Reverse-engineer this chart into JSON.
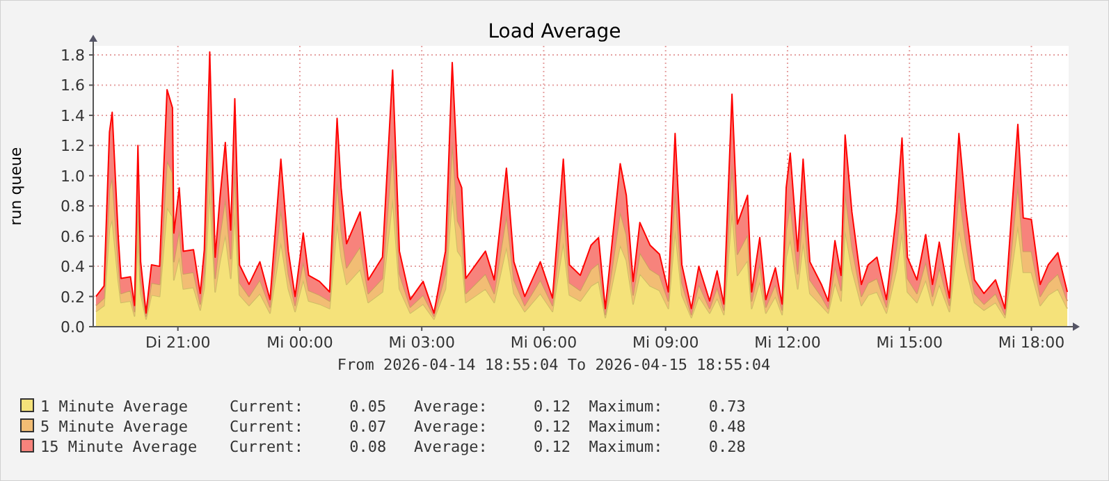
{
  "chart_data": {
    "type": "area",
    "stacked": true,
    "title": "Load Average",
    "subtitle": "From 2026-04-14 18:55:04 To 2026-04-15 18:55:04",
    "ylabel": "run queue",
    "x": [
      "2026-04-14T18:59",
      "2026-04-14T19:11",
      "2026-04-14T19:19",
      "2026-04-14T19:23",
      "2026-04-14T19:32",
      "2026-04-14T19:36",
      "2026-04-14T19:50",
      "2026-04-14T19:56",
      "2026-04-14T20:01",
      "2026-04-14T20:05",
      "2026-04-14T20:13",
      "2026-04-14T20:21",
      "2026-04-14T20:33",
      "2026-04-14T20:44",
      "2026-04-14T20:52",
      "2026-04-14T20:54",
      "2026-04-14T21:02",
      "2026-04-14T21:08",
      "2026-04-14T21:23",
      "2026-04-14T21:33",
      "2026-04-14T21:39",
      "2026-04-14T21:47",
      "2026-04-14T21:55",
      "2026-04-14T22:02",
      "2026-04-14T22:10",
      "2026-04-14T22:18",
      "2026-04-14T22:24",
      "2026-04-14T22:31",
      "2026-04-14T22:45",
      "2026-04-14T23:01",
      "2026-04-14T23:16",
      "2026-04-14T23:32",
      "2026-04-14T23:43",
      "2026-04-14T23:53",
      "2026-04-15T00:05",
      "2026-04-15T00:13",
      "2026-04-15T00:29",
      "2026-04-15T00:44",
      "2026-04-15T00:55",
      "2026-04-15T01:01",
      "2026-04-15T01:09",
      "2026-04-15T01:29",
      "2026-04-15T01:41",
      "2026-04-15T02:02",
      "2026-04-15T02:17",
      "2026-04-15T02:27",
      "2026-04-15T02:43",
      "2026-04-15T03:02",
      "2026-04-15T03:18",
      "2026-04-15T03:35",
      "2026-04-15T03:45",
      "2026-04-15T03:53",
      "2026-04-15T03:59",
      "2026-04-15T04:05",
      "2026-04-15T04:34",
      "2026-04-15T04:47",
      "2026-04-15T05:05",
      "2026-04-15T05:16",
      "2026-04-15T05:32",
      "2026-04-15T05:55",
      "2026-04-15T06:13",
      "2026-04-15T06:29",
      "2026-04-15T06:38",
      "2026-04-15T06:54",
      "2026-04-15T07:10",
      "2026-04-15T07:21",
      "2026-04-15T07:31",
      "2026-04-15T07:53",
      "2026-04-15T08:02",
      "2026-04-15T08:12",
      "2026-04-15T08:22",
      "2026-04-15T08:37",
      "2026-04-15T08:51",
      "2026-04-15T09:04",
      "2026-04-15T09:14",
      "2026-04-15T09:24",
      "2026-04-15T09:38",
      "2026-04-15T09:49",
      "2026-04-15T10:05",
      "2026-04-15T10:16",
      "2026-04-15T10:26",
      "2026-04-15T10:38",
      "2026-04-15T10:46",
      "2026-04-15T11:01",
      "2026-04-15T11:07",
      "2026-04-15T11:19",
      "2026-04-15T11:28",
      "2026-04-15T11:42",
      "2026-04-15T11:52",
      "2026-04-15T11:58",
      "2026-04-15T12:04",
      "2026-04-15T12:15",
      "2026-04-15T12:23",
      "2026-04-15T12:33",
      "2026-04-15T12:50",
      "2026-04-15T13:00",
      "2026-04-15T13:10",
      "2026-04-15T13:19",
      "2026-04-15T13:25",
      "2026-04-15T13:35",
      "2026-04-15T13:49",
      "2026-04-15T13:59",
      "2026-04-15T14:12",
      "2026-04-15T14:26",
      "2026-04-15T14:41",
      "2026-04-15T14:49",
      "2026-04-15T14:57",
      "2026-04-15T15:11",
      "2026-04-15T15:24",
      "2026-04-15T15:34",
      "2026-04-15T15:44",
      "2026-04-15T15:59",
      "2026-04-15T16:13",
      "2026-04-15T16:23",
      "2026-04-15T16:36",
      "2026-04-15T16:50",
      "2026-04-15T17:07",
      "2026-04-15T17:21",
      "2026-04-15T17:40",
      "2026-04-15T17:48",
      "2026-04-15T18:00",
      "2026-04-15T18:13",
      "2026-04-15T18:25",
      "2026-04-15T18:39",
      "2026-04-15T18:53"
    ],
    "series": [
      {
        "name": "1 Minute Average",
        "color": "#f5e27a",
        "values": [
          0.1,
          0.14,
          0.65,
          0.71,
          0.3,
          0.16,
          0.17,
          0.07,
          0.6,
          0.22,
          0.05,
          0.21,
          0.2,
          0.79,
          0.73,
          0.31,
          0.46,
          0.25,
          0.26,
          0.11,
          0.26,
          0.91,
          0.23,
          0.43,
          0.61,
          0.32,
          0.76,
          0.21,
          0.14,
          0.22,
          0.09,
          0.56,
          0.25,
          0.1,
          0.31,
          0.17,
          0.15,
          0.12,
          0.69,
          0.46,
          0.28,
          0.38,
          0.16,
          0.23,
          0.85,
          0.25,
          0.09,
          0.15,
          0.05,
          0.25,
          0.88,
          0.5,
          0.46,
          0.16,
          0.25,
          0.16,
          0.53,
          0.22,
          0.1,
          0.22,
          0.1,
          0.56,
          0.21,
          0.17,
          0.27,
          0.3,
          0.06,
          0.54,
          0.44,
          0.15,
          0.35,
          0.27,
          0.24,
          0.12,
          0.64,
          0.21,
          0.06,
          0.2,
          0.09,
          0.19,
          0.08,
          0.77,
          0.34,
          0.44,
          0.12,
          0.3,
          0.09,
          0.2,
          0.08,
          0.46,
          0.58,
          0.25,
          0.56,
          0.22,
          0.14,
          0.09,
          0.29,
          0.17,
          0.64,
          0.38,
          0.14,
          0.21,
          0.23,
          0.09,
          0.38,
          0.63,
          0.23,
          0.16,
          0.31,
          0.14,
          0.28,
          0.1,
          0.64,
          0.4,
          0.16,
          0.11,
          0.16,
          0.06,
          0.67,
          0.36,
          0.36,
          0.14,
          0.21,
          0.25,
          0.12
        ]
      },
      {
        "name": "5 Minute Average",
        "color": "#f2bd74",
        "values": [
          0.04,
          0.05,
          0.26,
          0.28,
          0.12,
          0.06,
          0.07,
          0.03,
          0.24,
          0.09,
          0.02,
          0.08,
          0.08,
          0.31,
          0.29,
          0.12,
          0.18,
          0.1,
          0.1,
          0.04,
          0.1,
          0.36,
          0.09,
          0.17,
          0.24,
          0.13,
          0.3,
          0.08,
          0.06,
          0.09,
          0.04,
          0.22,
          0.1,
          0.04,
          0.12,
          0.07,
          0.06,
          0.05,
          0.28,
          0.18,
          0.11,
          0.15,
          0.06,
          0.09,
          0.34,
          0.1,
          0.04,
          0.06,
          0.02,
          0.1,
          0.35,
          0.2,
          0.18,
          0.06,
          0.1,
          0.06,
          0.21,
          0.09,
          0.04,
          0.09,
          0.04,
          0.22,
          0.08,
          0.07,
          0.11,
          0.12,
          0.02,
          0.22,
          0.17,
          0.06,
          0.14,
          0.11,
          0.1,
          0.05,
          0.26,
          0.08,
          0.02,
          0.08,
          0.03,
          0.07,
          0.03,
          0.31,
          0.14,
          0.17,
          0.05,
          0.12,
          0.04,
          0.08,
          0.03,
          0.18,
          0.23,
          0.1,
          0.22,
          0.09,
          0.06,
          0.03,
          0.11,
          0.07,
          0.25,
          0.15,
          0.06,
          0.08,
          0.09,
          0.04,
          0.15,
          0.25,
          0.09,
          0.06,
          0.12,
          0.06,
          0.11,
          0.04,
          0.26,
          0.16,
          0.06,
          0.04,
          0.06,
          0.02,
          0.27,
          0.14,
          0.14,
          0.06,
          0.08,
          0.1,
          0.05
        ]
      },
      {
        "name": "15 Minute Average",
        "color": "#f7837c",
        "values": [
          0.06,
          0.08,
          0.38,
          0.43,
          0.17,
          0.1,
          0.09,
          0.04,
          0.36,
          0.12,
          0.02,
          0.12,
          0.12,
          0.47,
          0.43,
          0.19,
          0.28,
          0.15,
          0.15,
          0.07,
          0.15,
          0.55,
          0.14,
          0.25,
          0.37,
          0.19,
          0.45,
          0.12,
          0.08,
          0.12,
          0.05,
          0.33,
          0.15,
          0.06,
          0.19,
          0.1,
          0.09,
          0.06,
          0.41,
          0.28,
          0.16,
          0.23,
          0.09,
          0.14,
          0.51,
          0.15,
          0.05,
          0.09,
          0.02,
          0.15,
          0.52,
          0.29,
          0.28,
          0.1,
          0.15,
          0.09,
          0.31,
          0.12,
          0.06,
          0.12,
          0.05,
          0.33,
          0.12,
          0.1,
          0.16,
          0.17,
          0.04,
          0.32,
          0.26,
          0.09,
          0.2,
          0.16,
          0.14,
          0.06,
          0.38,
          0.12,
          0.04,
          0.12,
          0.05,
          0.11,
          0.04,
          0.46,
          0.2,
          0.26,
          0.06,
          0.17,
          0.05,
          0.11,
          0.04,
          0.28,
          0.34,
          0.15,
          0.33,
          0.12,
          0.08,
          0.05,
          0.17,
          0.1,
          0.38,
          0.23,
          0.08,
          0.12,
          0.14,
          0.05,
          0.23,
          0.37,
          0.14,
          0.09,
          0.18,
          0.08,
          0.17,
          0.05,
          0.38,
          0.23,
          0.09,
          0.07,
          0.09,
          0.04,
          0.4,
          0.22,
          0.21,
          0.08,
          0.12,
          0.14,
          0.06
        ]
      }
    ],
    "xlim": [
      "2026-04-14T18:55",
      "2026-04-15T18:55"
    ],
    "xticks": [
      {
        "value": "2026-04-14T21:00",
        "label": "Di 21:00"
      },
      {
        "value": "2026-04-15T00:00",
        "label": "Mi 00:00"
      },
      {
        "value": "2026-04-15T03:00",
        "label": "Mi 03:00"
      },
      {
        "value": "2026-04-15T06:00",
        "label": "Mi 06:00"
      },
      {
        "value": "2026-04-15T09:00",
        "label": "Mi 09:00"
      },
      {
        "value": "2026-04-15T12:00",
        "label": "Mi 12:00"
      },
      {
        "value": "2026-04-15T15:00",
        "label": "Mi 15:00"
      },
      {
        "value": "2026-04-15T18:00",
        "label": "Mi 18:00"
      }
    ],
    "ylim": [
      0,
      1.86
    ],
    "yticks": [
      {
        "value": 0,
        "label": "0.0"
      },
      0.2,
      0.4,
      0.6,
      0.8,
      {
        "value": 1,
        "label": "1.0"
      },
      1.2,
      1.4,
      1.6,
      1.8
    ],
    "grid": true,
    "legend": "bottom",
    "annotations": [
      "Current:     0.05   Average:     0.12  Maximum:     0.73",
      "Current:     0.07   Average:     0.12  Maximum:     0.48",
      "Current:     0.08   Average:     0.12  Maximum:     0.28"
    ]
  }
}
